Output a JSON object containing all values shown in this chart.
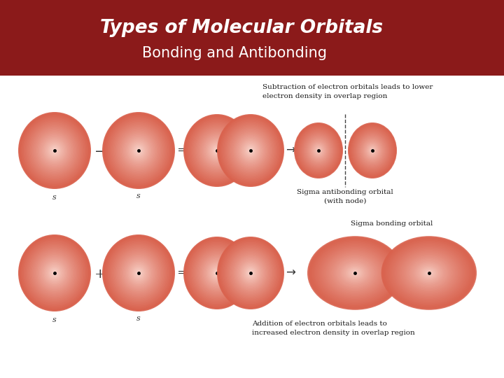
{
  "title_line1": "Types of Molecular Orbitals",
  "title_line2": "Bonding and Antibonding",
  "header_bg": "#8B1A1A",
  "body_bg": "#FFFFFF",
  "row1_text_top": "Subtraction of electron orbitals leads to lower\nelectron density in overlap region",
  "row1_label_bottom": "Sigma antibonding orbital\n(with node)",
  "row2_text_bottom": "Addition of electron orbitals leads to\nincreased electron density in overlap region",
  "row2_label_top": "Sigma bonding orbital",
  "s_label": "s",
  "operator_row1": "−",
  "operator_row2": "+",
  "arrow1": "⇒",
  "arrow2": "→",
  "orbital_dark": [
    0.85,
    0.38,
    0.3
  ],
  "orbital_mid": [
    0.93,
    0.62,
    0.55
  ],
  "orbital_light": [
    0.99,
    0.88,
    0.85
  ]
}
